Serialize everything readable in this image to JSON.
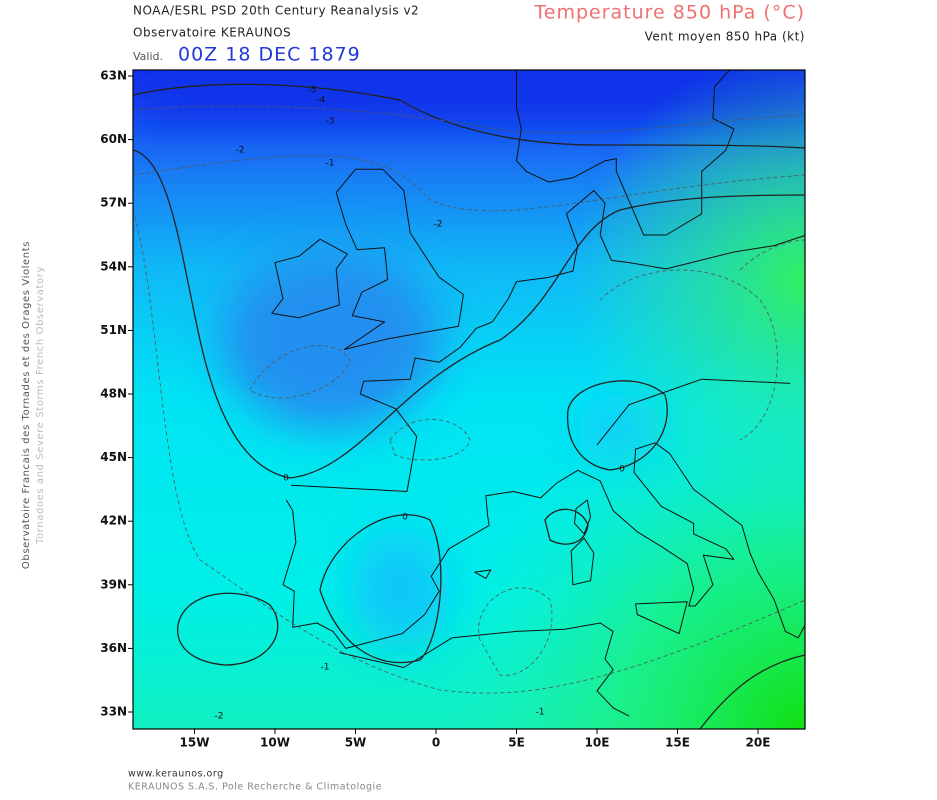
{
  "header": {
    "line1": "NOAA/ESRL PSD 20th Century Reanalysis v2",
    "line2": "Observatoire KERAUNOS",
    "valid_prefix": "Valid.",
    "valid_date": "00Z 18 DEC 1879"
  },
  "legend": {
    "title": "Temperature 850 hPa (°C)",
    "subtitle": "Vent moyen 850 hPa (kt)"
  },
  "side": {
    "line1": "Observatoire Francais des Tornades et des Orages Violents",
    "line2": "Tornadoes and Severe Storms French Observatory"
  },
  "map": {
    "lat_labels": [
      "63N",
      "60N",
      "57N",
      "54N",
      "51N",
      "48N",
      "45N",
      "42N",
      "39N",
      "36N",
      "33N"
    ],
    "lon_labels": [
      "15W",
      "10W",
      "5W",
      "0",
      "5E",
      "10E",
      "15E",
      "20E"
    ],
    "contour_labels": [
      "-5",
      "-4",
      "-3",
      "-2",
      "-1",
      "-2",
      "0",
      "0",
      "0",
      "-1",
      "-2",
      "-1"
    ]
  },
  "footer": {
    "url": "www.keraunos.org",
    "company": "KERAUNOS S.A.S. Pole Recherche & Climatologie"
  }
}
